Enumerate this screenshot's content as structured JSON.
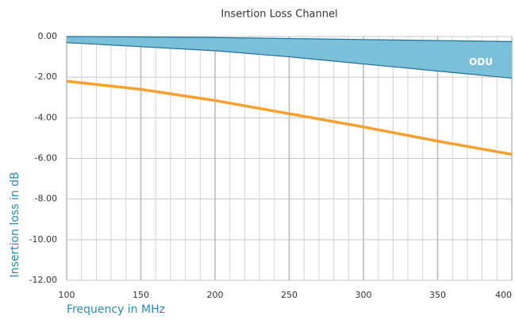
{
  "chart_data": {
    "type": "line",
    "title": "Insertion Loss Channel",
    "xlabel": "Frequency in MHz",
    "ylabel": "Insertion loss in dB",
    "x": [
      100,
      150,
      200,
      250,
      300,
      350,
      400
    ],
    "band": {
      "name": "ODU",
      "color": "#7bbfd9",
      "edge_color": "#1f6f95",
      "upper": [
        0,
        -0.02,
        -0.05,
        -0.1,
        -0.15,
        -0.2,
        -0.25
      ],
      "lower": [
        -0.3,
        -0.5,
        -0.7,
        -1.0,
        -1.35,
        -1.7,
        -2.05
      ]
    },
    "series": [
      {
        "color": "#f5a030",
        "values": [
          -2.2,
          -2.6,
          -3.15,
          -3.8,
          -4.45,
          -5.15,
          -5.8
        ]
      }
    ],
    "xlim": [
      100,
      400
    ],
    "ylim": [
      -12,
      0
    ],
    "xticks": [
      100,
      150,
      200,
      250,
      300,
      350,
      400
    ],
    "xminorticks": [
      110,
      120,
      130,
      140,
      160,
      170,
      180,
      190,
      210,
      220,
      230,
      240,
      260,
      270,
      280,
      290,
      310,
      320,
      330,
      340,
      360,
      370,
      380,
      390
    ],
    "yticks": [
      {
        "value": 0,
        "label": "0.00"
      },
      {
        "value": -2,
        "label": "-2.00"
      },
      {
        "value": -4,
        "label": "-4.00"
      },
      {
        "value": -6,
        "label": "-6.00"
      },
      {
        "value": -8,
        "label": "-8.00"
      },
      {
        "value": -10,
        "label": "-10.00"
      },
      {
        "value": -12,
        "label": "-12.00"
      }
    ],
    "grid": true
  }
}
